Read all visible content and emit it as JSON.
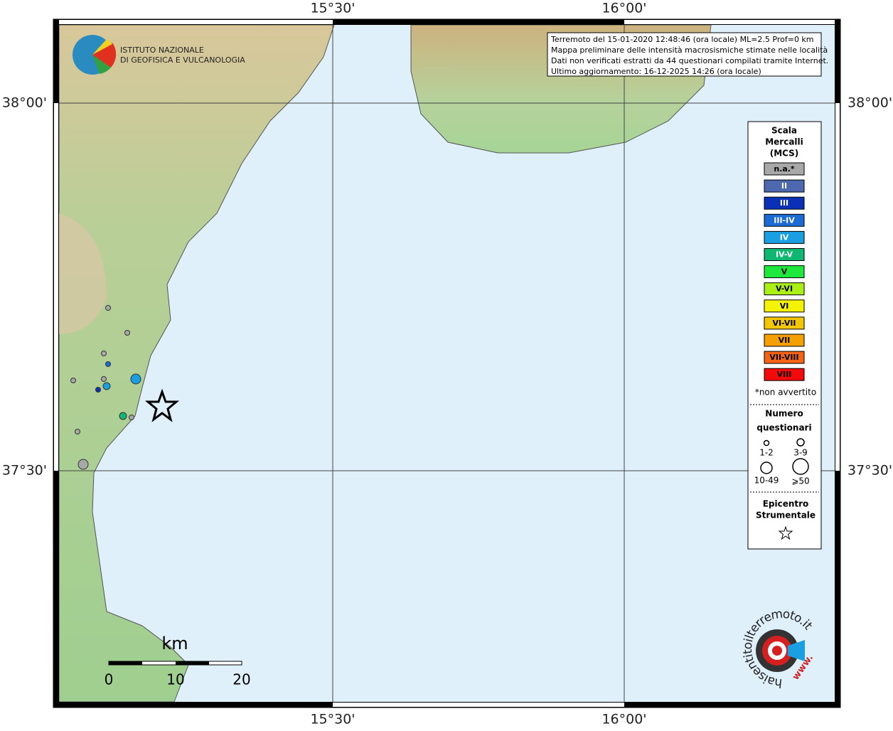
{
  "map": {
    "ticks": {
      "top": [
        "15°30'",
        "16°00'"
      ],
      "bottom": [
        "15°30'",
        "16°00'"
      ],
      "left": [
        "38°00'",
        "37°30'"
      ],
      "right": [
        "38°00'",
        "37°30'"
      ]
    },
    "info": [
      "Terremoto del 15-01-2020 12:48:46 (ora locale) ML=2.5 Prof=0 km",
      "Mappa preliminare delle intensità macrosismiche stimate nelle località",
      "Dati non verificati estratti da 44 questionari compilati tramite Internet.",
      "Ultimo aggiornamento: 16-12-2025 14:26 (ora locale)"
    ],
    "institute": [
      "ISTITUTO NAZIONALE",
      "DI GEOFISICA E VULCANOLOGIA"
    ],
    "legend": {
      "title": [
        "Scala",
        "Mercalli",
        "(MCS)"
      ],
      "items": [
        {
          "label": "n.a.*",
          "color": "#a8a8a8"
        },
        {
          "label": "II",
          "color": "#4e68b0"
        },
        {
          "label": "III",
          "color": "#0a30b8"
        },
        {
          "label": "III-IV",
          "color": "#1a6cd4"
        },
        {
          "label": "IV",
          "color": "#1aa0e2"
        },
        {
          "label": "IV-V",
          "color": "#0fb872"
        },
        {
          "label": "V",
          "color": "#1ee83c"
        },
        {
          "label": "V-VI",
          "color": "#aaf014"
        },
        {
          "label": "VI",
          "color": "#f4f400"
        },
        {
          "label": "VI-VII",
          "color": "#f4c800"
        },
        {
          "label": "VII",
          "color": "#f4a000"
        },
        {
          "label": "VII-VIII",
          "color": "#f46414"
        },
        {
          "label": "VIII",
          "color": "#f40a0a"
        }
      ],
      "note": "*non avvertito",
      "count_title": [
        "Numero",
        "questionari"
      ],
      "counts": [
        "1-2",
        "3-9",
        "10-49",
        "⩾50"
      ],
      "epicenter": [
        "Epicentro",
        "Strumentale"
      ]
    },
    "scale": {
      "unit": "km",
      "labels": [
        "0",
        "10",
        "20"
      ]
    },
    "site": {
      "name": "haisentitoilterremoto.it",
      "www": "www."
    }
  }
}
